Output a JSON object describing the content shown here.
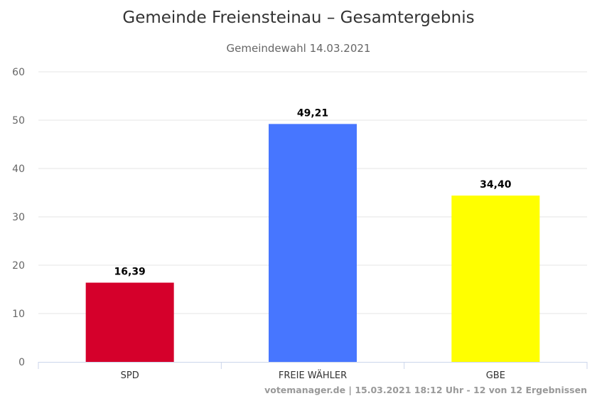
{
  "chart_data": {
    "type": "bar",
    "title": "Gemeinde Freiensteinau – Gesamtergebnis",
    "subtitle": "Gemeindewahl 14.03.2021",
    "xlabel": "",
    "ylabel": "",
    "categories": [
      "SPD",
      "FREIE WÄHLER",
      "GBE"
    ],
    "values": [
      16.39,
      49.21,
      34.4
    ],
    "value_labels": [
      "16,39",
      "49,21",
      "34,40"
    ],
    "colors": [
      "#d5002b",
      "#4776ff",
      "#ffff00"
    ],
    "ylim": [
      0,
      60
    ],
    "yticks": [
      0,
      10,
      20,
      30,
      40,
      50,
      60
    ],
    "grid": true,
    "legend": "none"
  },
  "credits": "votemanager.de | 15.03.2021 18:12 Uhr - 12 von 12 Ergebnissen"
}
